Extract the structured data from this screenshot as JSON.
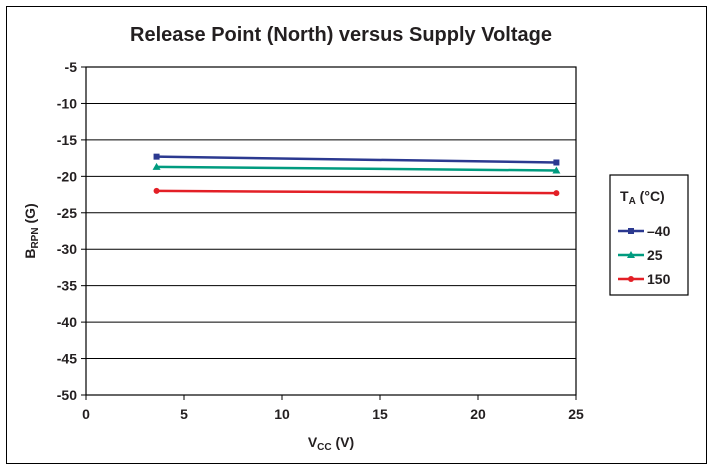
{
  "chart_data": {
    "type": "line",
    "title": "Release Point (North) versus Supply Voltage",
    "xlabel": {
      "main": "V",
      "sub": "CC",
      "tail": " (V)"
    },
    "ylabel": {
      "main": "B",
      "sub": "RPN",
      "tail": " (G)"
    },
    "xlim": [
      0,
      25
    ],
    "ylim": [
      -50,
      -5
    ],
    "xticks": [
      0,
      5,
      10,
      15,
      20,
      25
    ],
    "yticks": [
      -5,
      -10,
      -15,
      -20,
      -25,
      -30,
      -35,
      -40,
      -45,
      -50
    ],
    "grid": "horizontal",
    "legend": {
      "position": "right",
      "title_main": "T",
      "title_sub": "A",
      "title_tail": " (°C)"
    },
    "series": [
      {
        "name": "–40",
        "color": "#2b3990",
        "marker": "square",
        "x": [
          3.6,
          24
        ],
        "y": [
          -17.3,
          -18.1
        ]
      },
      {
        "name": "25",
        "color": "#009b7f",
        "marker": "triangle",
        "x": [
          3.6,
          24
        ],
        "y": [
          -18.7,
          -19.2
        ]
      },
      {
        "name": "150",
        "color": "#e31f26",
        "marker": "circle",
        "x": [
          3.6,
          24
        ],
        "y": [
          -22.0,
          -22.3
        ]
      }
    ]
  }
}
